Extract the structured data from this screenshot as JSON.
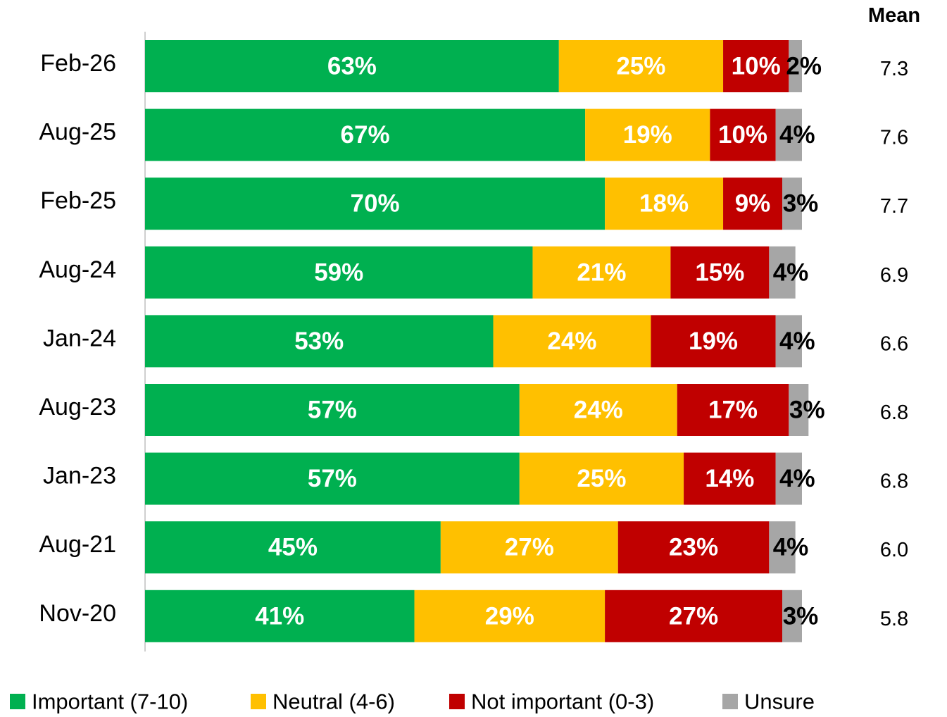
{
  "chart_data": {
    "type": "stacked-bar-horizontal",
    "categories": [
      "Feb-26",
      "Aug-25",
      "Feb-25",
      "Aug-24",
      "Jan-24",
      "Aug-23",
      "Jan-23",
      "Aug-21",
      "Nov-20"
    ],
    "xlim": [
      0,
      100
    ],
    "series": [
      {
        "name": "Important (7-10)",
        "color": "#00b050",
        "values": [
          63,
          67,
          70,
          59,
          53,
          57,
          57,
          45,
          41
        ],
        "value_labels": [
          "63%",
          "67%",
          "70%",
          "59%",
          "53%",
          "57%",
          "57%",
          "45%",
          "41%"
        ]
      },
      {
        "name": "Neutral (4-6)",
        "color": "#ffc000",
        "values": [
          25,
          19,
          18,
          21,
          24,
          24,
          25,
          27,
          29
        ],
        "value_labels": [
          "25%",
          "19%",
          "18%",
          "21%",
          "24%",
          "24%",
          "25%",
          "27%",
          "29%"
        ]
      },
      {
        "name": "Not important (0-3)",
        "color": "#c00000",
        "values": [
          10,
          10,
          9,
          15,
          19,
          17,
          14,
          23,
          27
        ],
        "value_labels": [
          "10%",
          "10%",
          "9%",
          "15%",
          "19%",
          "17%",
          "14%",
          "23%",
          "27%"
        ]
      },
      {
        "name": "Unsure",
        "color": "#a6a6a6",
        "values": [
          2,
          4,
          3,
          4,
          4,
          3,
          4,
          4,
          3
        ],
        "value_labels": [
          "2%",
          "4%",
          "3%",
          "4%",
          "4%",
          "3%",
          "4%",
          "4%",
          "3%"
        ]
      }
    ],
    "mean_header": "Mean",
    "means": [
      "7.3",
      "7.6",
      "7.7",
      "6.9",
      "6.6",
      "6.8",
      "6.8",
      "6.0",
      "5.8"
    ]
  }
}
